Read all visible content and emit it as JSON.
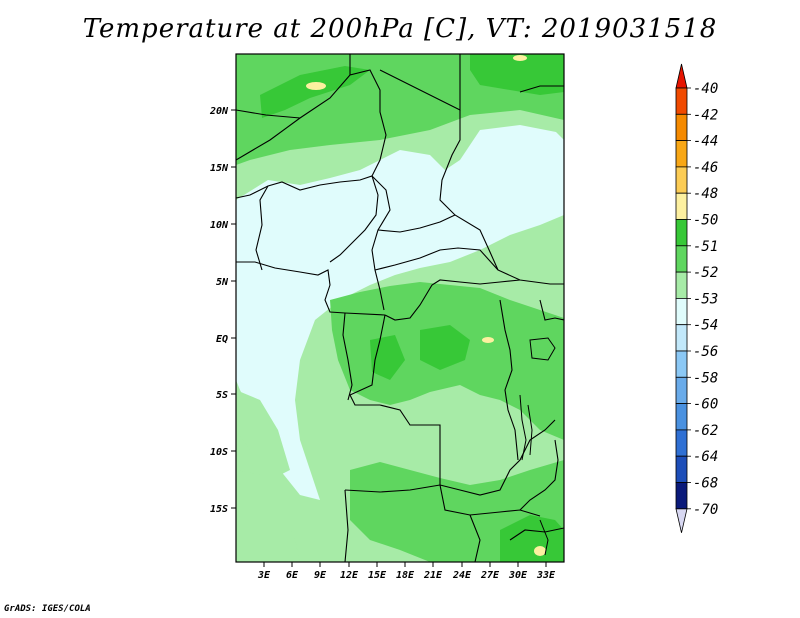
{
  "title": "Temperature at 200hPa [C], VT: 2019031518",
  "credit": "GrADS: IGES/COLA",
  "map": {
    "lat_ticks": [
      "20N",
      "15N",
      "10N",
      "5N",
      "EQ",
      "5S",
      "10S",
      "15S"
    ],
    "lon_ticks": [
      "3E",
      "6E",
      "9E",
      "12E",
      "15E",
      "18E",
      "21E",
      "24E",
      "27E",
      "30E",
      "33E"
    ]
  },
  "colorbar": {
    "labels": [
      "-40",
      "-42",
      "-44",
      "-46",
      "-48",
      "-50",
      "-51",
      "-52",
      "-53",
      "-54",
      "-56",
      "-58",
      "-60",
      "-62",
      "-64",
      "-68",
      "-70"
    ],
    "colors": [
      "#e61400",
      "#f04a00",
      "#f58a00",
      "#f8a716",
      "#fccc55",
      "#fdf0a0",
      "#37c837",
      "#5fd65f",
      "#a7eba7",
      "#e0fcfc",
      "#c2e8fa",
      "#8bc8f5",
      "#69abea",
      "#4a91e0",
      "#2f70d4",
      "#1d4eb9",
      "#0a1a7a",
      "#d8d8f2"
    ],
    "colors_note": "the last entry is the lower-triangle color"
  },
  "legend_colors": {
    "dark_green": "#37c837",
    "mid_green": "#5fd65f",
    "light_green": "#a7eba7",
    "pale_cyan": "#e0fcfc",
    "pale_yellow": "#fdf0a0",
    "border": "#000000"
  }
}
